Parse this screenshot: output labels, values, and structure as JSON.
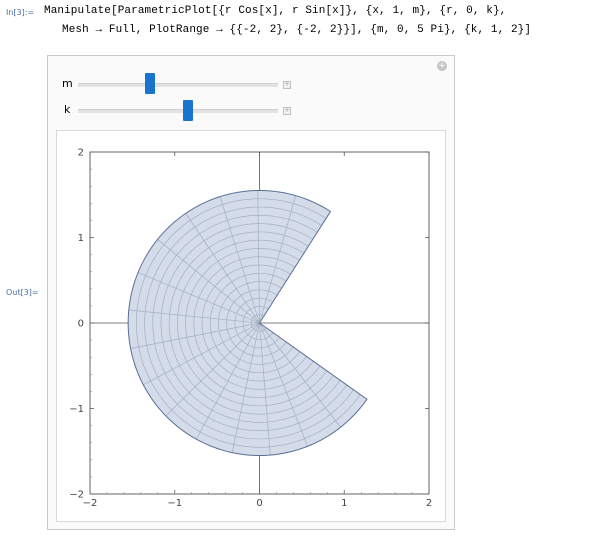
{
  "input": {
    "label": "In[3]:=",
    "line1": "Manipulate[ParametricPlot[{r Cos[x], r Sin[x]}, {x, 1, m}, {r, 0, k},",
    "line2": "Mesh → Full, PlotRange → {{-2, 2}, {-2, 2}}], {m, 0, 5 Pi}, {k, 1, 2}]"
  },
  "output": {
    "label": "Out[3]="
  },
  "controls": {
    "m": {
      "label": "m",
      "min": 0,
      "max": 15.708,
      "value": 5.67
    },
    "k": {
      "label": "k",
      "min": 1,
      "max": 2,
      "value": 1.55
    }
  },
  "chart_data": {
    "type": "area",
    "title": "",
    "xlim": [
      -2,
      2
    ],
    "ylim": [
      -2,
      2
    ],
    "x_ticks": [
      "−2",
      "−1",
      "0",
      "1",
      "2"
    ],
    "y_ticks": [
      "−2",
      "−1",
      "0",
      "1",
      "2"
    ],
    "angle_start": 1,
    "angle_end": 5.67,
    "radius": 1.55,
    "radial_mesh_lines": 15,
    "angular_mesh_lines": 15,
    "fill_color": "#d4dcea",
    "mesh_color": "#a4afc4",
    "edge_color": "#5a6f94",
    "grid": false
  }
}
